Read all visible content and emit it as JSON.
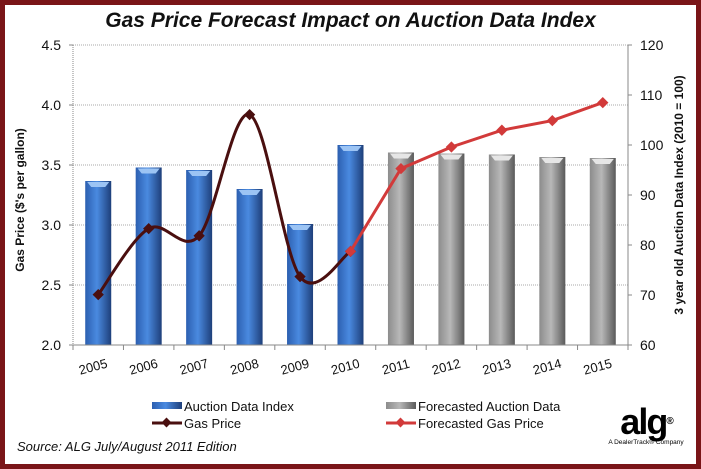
{
  "chart_data": {
    "type": "bar",
    "title": "Gas Price Forecast Impact on Auction Data Index",
    "categories": [
      "2005",
      "2006",
      "2007",
      "2008",
      "2009",
      "2010",
      "2011",
      "2012",
      "2013",
      "2014",
      "2015"
    ],
    "ylabel_left": "Gas Price ($'s per gallon)",
    "ylabel_right": "3 year old Auction Data Index (2010 = 100)",
    "ylim_left": [
      2.0,
      4.5
    ],
    "ylim_right": [
      60,
      120
    ],
    "yticks_left": [
      "2.0",
      "2.5",
      "3.0",
      "3.5",
      "4.0",
      "4.5"
    ],
    "yticks_right": [
      "60",
      "70",
      "80",
      "90",
      "100",
      "110",
      "120"
    ],
    "grid": true,
    "series": [
      {
        "name": "Auction Data Index",
        "type": "bar",
        "axis": "right",
        "color": "#3a76d0",
        "values": [
          92.8,
          95.5,
          95.0,
          91.2,
          84.2,
          100.0,
          null,
          null,
          null,
          null,
          null
        ]
      },
      {
        "name": "Forecasted Auction Data",
        "type": "bar",
        "axis": "right",
        "color": "#a8a8a8",
        "values": [
          null,
          null,
          null,
          null,
          null,
          null,
          98.5,
          98.3,
          98.1,
          97.6,
          97.4
        ]
      },
      {
        "name": "Gas Price",
        "type": "line",
        "axis": "left",
        "color": "#4a0f0f",
        "values": [
          2.42,
          2.97,
          2.91,
          3.92,
          2.57,
          2.78,
          null,
          null,
          null,
          null,
          null
        ]
      },
      {
        "name": "Forecasted Gas Price",
        "type": "line",
        "axis": "left",
        "color": "#d23a3a",
        "values": [
          null,
          null,
          null,
          null,
          null,
          2.78,
          3.47,
          3.65,
          3.79,
          3.87,
          4.02
        ]
      }
    ],
    "legend_position": "bottom"
  },
  "source": "Source: ALG July/August 2011 Edition",
  "logo": {
    "text": "alg",
    "registered": "®",
    "tagline": "A DealerTrack® Company"
  }
}
